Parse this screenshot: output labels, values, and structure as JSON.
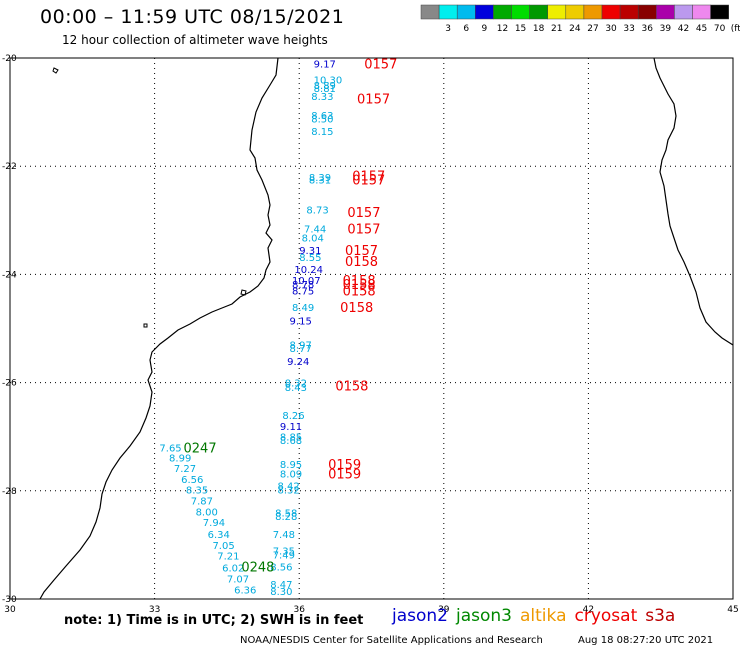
{
  "header": {
    "title": "00:00 – 11:59 UTC 08/15/2021",
    "subtitle": "12 hour collection of altimeter wave heights"
  },
  "colorbar": {
    "unit": "(ft)",
    "bins": [
      {
        "label": "",
        "color": "#888888"
      },
      {
        "label": "3",
        "color": "#00eeee"
      },
      {
        "label": "6",
        "color": "#00bbee"
      },
      {
        "label": "9",
        "color": "#0000dd"
      },
      {
        "label": "12",
        "color": "#00aa00"
      },
      {
        "label": "15",
        "color": "#00dd00"
      },
      {
        "label": "18",
        "color": "#009900"
      },
      {
        "label": "21",
        "color": "#eeee00"
      },
      {
        "label": "24",
        "color": "#eecc00"
      },
      {
        "label": "27",
        "color": "#ee9900"
      },
      {
        "label": "30",
        "color": "#ee0000"
      },
      {
        "label": "33",
        "color": "#bb0000"
      },
      {
        "label": "36",
        "color": "#880000"
      },
      {
        "label": "39",
        "color": "#aa00aa"
      },
      {
        "label": "42",
        "color": "#bb99ee"
      },
      {
        "label": "45",
        "color": "#ee88ee"
      },
      {
        "label": "70",
        "color": "#000000"
      }
    ]
  },
  "map": {
    "lon_range": [
      30,
      45
    ],
    "lat_range": [
      -30,
      -20
    ],
    "lon_ticks": [
      "30",
      "33",
      "36",
      "39",
      "42",
      "45"
    ],
    "lat_ticks": [
      "-20",
      "-22",
      "-24",
      "-26",
      "-28",
      "-30"
    ],
    "grid": true,
    "tracks": [
      {
        "satellite": "altika-cyan",
        "color": "#00aadd",
        "points": [
          {
            "lon": 36.3,
            "lat": -20.4,
            "v": "10.30"
          },
          {
            "lon": 36.3,
            "lat": -20.5,
            "v": "8.89"
          },
          {
            "lon": 36.3,
            "lat": -20.55,
            "v": "8.81"
          },
          {
            "lon": 36.25,
            "lat": -20.7,
            "v": "8.33"
          },
          {
            "lon": 36.25,
            "lat": -21.05,
            "v": "8.63"
          },
          {
            "lon": 36.25,
            "lat": -21.12,
            "v": "8.50"
          },
          {
            "lon": 36.25,
            "lat": -21.35,
            "v": "8.15"
          },
          {
            "lon": 36.2,
            "lat": -22.2,
            "v": "8.39"
          },
          {
            "lon": 36.2,
            "lat": -22.25,
            "v": "8.31"
          },
          {
            "lon": 36.15,
            "lat": -22.8,
            "v": "8.73"
          },
          {
            "lon": 36.1,
            "lat": -23.15,
            "v": "7.44"
          },
          {
            "lon": 36.05,
            "lat": -23.32,
            "v": "8.04"
          },
          {
            "lon": 36.0,
            "lat": -23.68,
            "v": "8.55"
          },
          {
            "lon": 35.85,
            "lat": -24.6,
            "v": "8.49"
          },
          {
            "lon": 35.8,
            "lat": -25.3,
            "v": "8.97"
          },
          {
            "lon": 35.8,
            "lat": -25.36,
            "v": "8.77"
          },
          {
            "lon": 35.7,
            "lat": -26.0,
            "v": "8.32"
          },
          {
            "lon": 35.7,
            "lat": -26.08,
            "v": "8.43"
          },
          {
            "lon": 35.65,
            "lat": -26.6,
            "v": "8.26"
          },
          {
            "lon": 35.6,
            "lat": -27.0,
            "v": "8.85"
          },
          {
            "lon": 35.6,
            "lat": -27.06,
            "v": "8.68"
          },
          {
            "lon": 35.6,
            "lat": -27.5,
            "v": "8.95"
          },
          {
            "lon": 35.6,
            "lat": -27.68,
            "v": "8.09"
          },
          {
            "lon": 35.55,
            "lat": -27.9,
            "v": "8.42"
          },
          {
            "lon": 35.55,
            "lat": -27.98,
            "v": "8.32"
          },
          {
            "lon": 35.5,
            "lat": -28.4,
            "v": "8.58"
          },
          {
            "lon": 35.5,
            "lat": -28.47,
            "v": "8.28"
          },
          {
            "lon": 35.45,
            "lat": -28.8,
            "v": "7.48"
          },
          {
            "lon": 35.45,
            "lat": -29.1,
            "v": "7.35"
          },
          {
            "lon": 35.45,
            "lat": -29.18,
            "v": "7.49"
          },
          {
            "lon": 35.4,
            "lat": -29.4,
            "v": "8.56"
          },
          {
            "lon": 35.4,
            "lat": -29.72,
            "v": "8.47"
          },
          {
            "lon": 35.4,
            "lat": -29.85,
            "v": "8.30"
          }
        ]
      },
      {
        "satellite": "jason2-blue",
        "color": "#0000cc",
        "points": [
          {
            "lon": 36.3,
            "lat": -20.1,
            "v": "9.17"
          },
          {
            "lon": 36.0,
            "lat": -23.55,
            "v": "9.31"
          },
          {
            "lon": 35.9,
            "lat": -23.9,
            "v": "10.24"
          },
          {
            "lon": 35.85,
            "lat": -24.1,
            "v": "10.07"
          },
          {
            "lon": 35.85,
            "lat": -24.18,
            "v": "8.78"
          },
          {
            "lon": 35.85,
            "lat": -24.3,
            "v": "8.75"
          },
          {
            "lon": 35.8,
            "lat": -24.85,
            "v": "9.15"
          },
          {
            "lon": 35.75,
            "lat": -25.6,
            "v": "9.24"
          },
          {
            "lon": 35.6,
            "lat": -26.8,
            "v": "9.11"
          }
        ]
      },
      {
        "satellite": "sw-track-cyan",
        "color": "#00aadd",
        "points": [
          {
            "lon": 33.1,
            "lat": -27.2,
            "v": "7.65"
          },
          {
            "lon": 33.3,
            "lat": -27.38,
            "v": "8.99"
          },
          {
            "lon": 33.4,
            "lat": -27.58,
            "v": "7.27"
          },
          {
            "lon": 33.55,
            "lat": -27.78,
            "v": "6.56"
          },
          {
            "lon": 33.65,
            "lat": -27.98,
            "v": "8.35"
          },
          {
            "lon": 33.75,
            "lat": -28.18,
            "v": "7.87"
          },
          {
            "lon": 33.85,
            "lat": -28.38,
            "v": "8.00"
          },
          {
            "lon": 34.0,
            "lat": -28.58,
            "v": "7.94"
          },
          {
            "lon": 34.1,
            "lat": -28.8,
            "v": "6.34"
          },
          {
            "lon": 34.2,
            "lat": -29.0,
            "v": "7.05"
          },
          {
            "lon": 34.3,
            "lat": -29.2,
            "v": "7.21"
          },
          {
            "lon": 34.4,
            "lat": -29.42,
            "v": "6.02"
          },
          {
            "lon": 34.5,
            "lat": -29.62,
            "v": "7.07"
          },
          {
            "lon": 34.65,
            "lat": -29.82,
            "v": "6.36"
          }
        ]
      }
    ],
    "time_labels": [
      {
        "lon": 37.35,
        "lat": -20.1,
        "v": "0157",
        "color": "#ee0000"
      },
      {
        "lon": 37.2,
        "lat": -20.75,
        "v": "0157",
        "color": "#ee0000"
      },
      {
        "lon": 37.1,
        "lat": -22.17,
        "v": "0157",
        "color": "#ee0000"
      },
      {
        "lon": 37.1,
        "lat": -22.25,
        "v": "0157",
        "color": "#ee0000"
      },
      {
        "lon": 37.0,
        "lat": -22.85,
        "v": "0157",
        "color": "#ee0000"
      },
      {
        "lon": 37.0,
        "lat": -23.15,
        "v": "0157",
        "color": "#ee0000"
      },
      {
        "lon": 36.95,
        "lat": -23.55,
        "v": "0157",
        "color": "#ee0000"
      },
      {
        "lon": 36.95,
        "lat": -23.75,
        "v": "0158",
        "color": "#ee0000"
      },
      {
        "lon": 36.9,
        "lat": -24.1,
        "v": "0158",
        "color": "#ee0000"
      },
      {
        "lon": 36.9,
        "lat": -24.18,
        "v": "0158",
        "color": "#ee0000"
      },
      {
        "lon": 36.9,
        "lat": -24.3,
        "v": "0158",
        "color": "#ee0000"
      },
      {
        "lon": 36.85,
        "lat": -24.6,
        "v": "0158",
        "color": "#ee0000"
      },
      {
        "lon": 36.75,
        "lat": -26.05,
        "v": "0158",
        "color": "#ee0000"
      },
      {
        "lon": 36.6,
        "lat": -27.5,
        "v": "0159",
        "color": "#ee0000"
      },
      {
        "lon": 36.6,
        "lat": -27.68,
        "v": "0159",
        "color": "#ee0000"
      },
      {
        "lon": 33.6,
        "lat": -27.2,
        "v": "0247",
        "color": "#007700"
      },
      {
        "lon": 34.8,
        "lat": -29.4,
        "v": "0248",
        "color": "#007700"
      }
    ]
  },
  "footer": {
    "note": "note: 1) Time is in UTC; 2) SWH is in feet",
    "legend": [
      {
        "label": "jason2",
        "color": "#0000cc"
      },
      {
        "label": "jason3",
        "color": "#008800"
      },
      {
        "label": "altika",
        "color": "#ee9900"
      },
      {
        "label": "cryosat",
        "color": "#ee0000"
      },
      {
        "label": "s3a",
        "color": "#bb0000"
      }
    ],
    "credit": "NOAA/NESDIS Center for Satellite Applications and Research",
    "timestamp": "Aug 18 08:27:20 UTC 2021"
  }
}
